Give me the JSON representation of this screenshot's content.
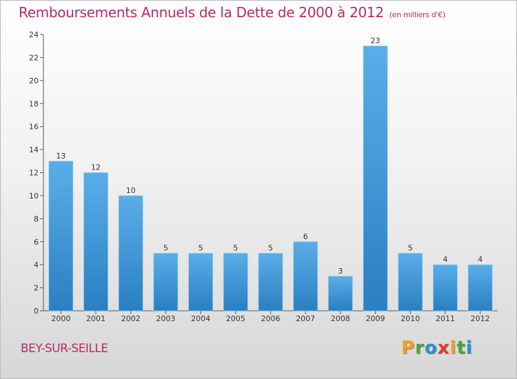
{
  "header": {
    "title": "Remboursements Annuels de la Dette de 2000 à 2012",
    "unit": "(en milliers d'€)"
  },
  "footer": {
    "commune": "BEY-SUR-SEILLE",
    "logo_letters": [
      "P",
      "r",
      "o",
      "x",
      "i",
      "t",
      "i"
    ],
    "logo_colors": [
      "#f0a11d",
      "#4aa33e",
      "#2f8fd0",
      "#e23b2e",
      "#f0a11d",
      "#4aa33e",
      "#2f8fd0"
    ]
  },
  "chart_data": {
    "type": "bar",
    "title": "Remboursements Annuels de la Dette de 2000 à 2012",
    "categories": [
      "2000",
      "2001",
      "2002",
      "2003",
      "2004",
      "2005",
      "2006",
      "2007",
      "2008",
      "2009",
      "2010",
      "2011",
      "2012"
    ],
    "values": [
      13,
      12,
      10,
      5,
      5,
      5,
      5,
      6,
      3,
      23,
      5,
      4,
      4
    ],
    "value_labels": [
      "13",
      "12",
      "10",
      "5",
      "5",
      "5",
      "5",
      "6",
      "3",
      "23",
      "5",
      "4",
      "4"
    ],
    "yticks": [
      "0",
      "2",
      "4",
      "6",
      "8",
      "10",
      "12",
      "14",
      "16",
      "18",
      "20",
      "22",
      "24"
    ],
    "ylim": [
      0,
      24
    ],
    "grid": false,
    "bar_color_top": "#5aaee8",
    "bar_color_bottom": "#2a7fc2"
  }
}
